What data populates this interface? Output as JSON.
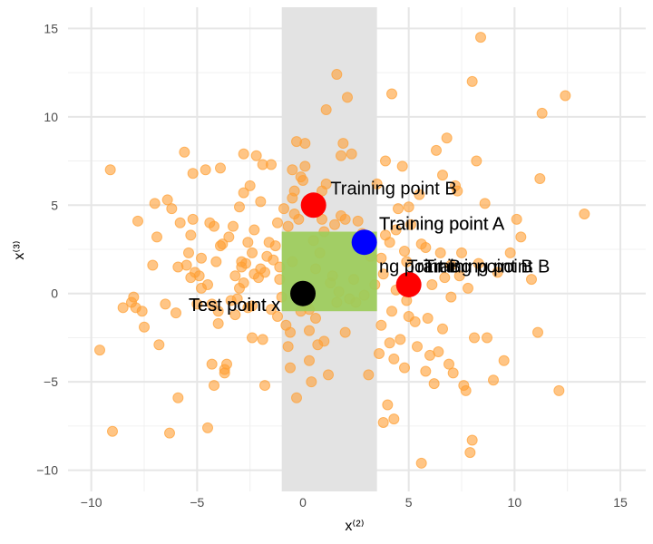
{
  "chart_data": {
    "type": "scatter",
    "title": "",
    "xlabel": "x⁽²⁾",
    "ylabel": "x⁽³⁾",
    "xlim": [
      -11.1,
      16.2
    ],
    "ylim": [
      -11.2,
      16.2
    ],
    "x_ticks": [
      -10,
      -5,
      0,
      5,
      10,
      15
    ],
    "y_ticks": [
      -10,
      -5,
      0,
      5,
      10,
      15
    ],
    "grid": true,
    "colors": {
      "points": "#ff9f33",
      "gray_band": "#e3e3e3",
      "green_box": "#9ccc5a",
      "training_b": "#ff0000",
      "training_a": "#0000ff",
      "test_point": "#000000"
    },
    "regions": [
      {
        "name": "gray-band",
        "x": [
          -1,
          3.5
        ],
        "y": [
          -11.2,
          16.2
        ]
      },
      {
        "name": "green-box",
        "x": [
          -1,
          3.5
        ],
        "y": [
          -1,
          3.5
        ]
      }
    ],
    "highlighted_points": [
      {
        "name": "training-point-b",
        "x": 0.5,
        "y": 5.0,
        "color": "#ff0000"
      },
      {
        "name": "training-point-a",
        "x": 2.9,
        "y": 2.9,
        "color": "#0000ff"
      },
      {
        "name": "training-point-b-2",
        "x": 5.0,
        "y": 0.5,
        "color": "#ff0000"
      },
      {
        "name": "test-point-x",
        "x": 0.0,
        "y": 0.0,
        "color": "#000000"
      }
    ],
    "annotations": [
      {
        "text": "Training point B",
        "x": 1.3,
        "y": 5.6
      },
      {
        "text": "Training point A",
        "x": 3.6,
        "y": 3.6
      },
      {
        "text": "Training point A",
        "x": 3.6,
        "y": 3.6
      },
      {
        "text": "ng point B",
        "x": 3.6,
        "y": 1.2
      },
      {
        "text": "Training point B",
        "x": 5.7,
        "y": 1.2
      },
      {
        "text": "Training point B",
        "x": 4.9,
        "y": 1.2
      },
      {
        "text": "Test point x",
        "x": -5.4,
        "y": -1.0
      },
      {
        "text": "Test point x",
        "x": -5.4,
        "y": -1.0
      }
    ],
    "points": [
      [
        -9.6,
        -3.2
      ],
      [
        -9.1,
        7.0
      ],
      [
        -9.0,
        -7.8
      ],
      [
        -8.5,
        -0.8
      ],
      [
        -8.1,
        -0.5
      ],
      [
        -8.0,
        -0.2
      ],
      [
        -7.9,
        -0.8
      ],
      [
        -7.8,
        4.1
      ],
      [
        -7.6,
        -1.0
      ],
      [
        -7.5,
        -1.9
      ],
      [
        -7.1,
        1.6
      ],
      [
        -7.0,
        5.1
      ],
      [
        -6.8,
        -2.9
      ],
      [
        -6.5,
        -0.6
      ],
      [
        -6.4,
        5.3
      ],
      [
        -6.3,
        -7.9
      ],
      [
        -6.2,
        4.8
      ],
      [
        -6.0,
        -1.1
      ],
      [
        -5.9,
        1.5
      ],
      [
        -5.9,
        -5.9
      ],
      [
        -5.8,
        4.0
      ],
      [
        -5.6,
        8.0
      ],
      [
        -5.5,
        1.6
      ],
      [
        -5.4,
        2.3
      ],
      [
        -5.3,
        3.3
      ],
      [
        -5.3,
        0.9
      ],
      [
        -5.2,
        4.2
      ],
      [
        -5.2,
        6.8
      ],
      [
        -5.1,
        1.2
      ],
      [
        -5.0,
        -0.6
      ],
      [
        -4.9,
        1.0
      ],
      [
        -4.8,
        2.0
      ],
      [
        -4.8,
        0.3
      ],
      [
        -4.6,
        7.0
      ],
      [
        -4.5,
        -7.6
      ],
      [
        -4.5,
        0.5
      ],
      [
        -4.4,
        4.0
      ],
      [
        -4.3,
        -4.0
      ],
      [
        -4.3,
        -0.6
      ],
      [
        -4.2,
        3.8
      ],
      [
        -4.2,
        -5.2
      ],
      [
        -4.1,
        1.8
      ],
      [
        -4.0,
        -1.7
      ],
      [
        -4.0,
        -1.0
      ],
      [
        -3.9,
        7.1
      ],
      [
        -3.9,
        2.7
      ],
      [
        -3.8,
        2.8
      ],
      [
        -3.7,
        -4.5
      ],
      [
        -3.7,
        -4.3
      ],
      [
        -3.6,
        -4.0
      ],
      [
        -3.5,
        3.2
      ],
      [
        -3.4,
        -0.4
      ],
      [
        -3.3,
        3.8
      ],
      [
        -3.2,
        -1.2
      ],
      [
        -3.2,
        1.0
      ],
      [
        -3.1,
        -0.3
      ],
      [
        -3.0,
        4.9
      ],
      [
        -3.0,
        0.3
      ],
      [
        -2.9,
        1.5
      ],
      [
        -2.9,
        1.8
      ],
      [
        -2.8,
        0.6
      ],
      [
        -2.8,
        7.9
      ],
      [
        -2.8,
        5.7
      ],
      [
        -2.7,
        1.7
      ],
      [
        -2.6,
        2.9
      ],
      [
        -2.6,
        -0.8
      ],
      [
        -2.5,
        6.1
      ],
      [
        -2.4,
        2.3
      ],
      [
        -2.4,
        -2.5
      ],
      [
        -2.4,
        -0.7
      ],
      [
        -2.3,
        1.1
      ],
      [
        -2.3,
        3.6
      ],
      [
        -2.2,
        7.8
      ],
      [
        -2.1,
        0.9
      ],
      [
        -2.0,
        1.4
      ],
      [
        -1.9,
        -2.6
      ],
      [
        -1.9,
        7.3
      ],
      [
        -1.8,
        -5.2
      ],
      [
        -1.8,
        1.2
      ],
      [
        -1.7,
        2.1
      ],
      [
        -1.6,
        2.9
      ],
      [
        -1.5,
        -0.9
      ],
      [
        -1.5,
        7.3
      ],
      [
        -1.4,
        1.9
      ],
      [
        -1.3,
        2.7
      ],
      [
        -1.2,
        -1.3
      ],
      [
        -1.1,
        1.5
      ],
      [
        -1.1,
        0.8
      ],
      [
        -1.0,
        -0.2
      ],
      [
        -0.9,
        4.8
      ],
      [
        -0.8,
        -1.8
      ],
      [
        -0.7,
        -3.0
      ],
      [
        -0.7,
        3.8
      ],
      [
        -0.6,
        -2.2
      ],
      [
        -0.6,
        -4.2
      ],
      [
        -0.5,
        5.4
      ],
      [
        -0.5,
        1.8
      ],
      [
        -0.5,
        7.0
      ],
      [
        -0.4,
        5.8
      ],
      [
        -0.4,
        4.5
      ],
      [
        -0.3,
        8.6
      ],
      [
        -0.3,
        -5.9
      ],
      [
        -0.2,
        4.2
      ],
      [
        -0.1,
        6.6
      ],
      [
        -0.1,
        -1.0
      ],
      [
        0.0,
        6.4
      ],
      [
        0.1,
        7.2
      ],
      [
        0.1,
        8.5
      ],
      [
        0.2,
        -0.6
      ],
      [
        0.3,
        -0.9
      ],
      [
        0.3,
        -3.8
      ],
      [
        0.3,
        -2.1
      ],
      [
        0.4,
        -5.0
      ],
      [
        0.5,
        3.0
      ],
      [
        0.6,
        1.4
      ],
      [
        0.6,
        -1.4
      ],
      [
        0.7,
        -2.9
      ],
      [
        0.8,
        2.3
      ],
      [
        0.9,
        4.2
      ],
      [
        0.9,
        5.8
      ],
      [
        1.0,
        3.5
      ],
      [
        1.0,
        -2.7
      ],
      [
        1.1,
        6.2
      ],
      [
        1.1,
        10.4
      ],
      [
        1.2,
        -4.6
      ],
      [
        1.3,
        0.6
      ],
      [
        1.4,
        1.0
      ],
      [
        1.5,
        3.9
      ],
      [
        1.6,
        12.4
      ],
      [
        1.7,
        0.1
      ],
      [
        1.8,
        7.8
      ],
      [
        1.8,
        4.4
      ],
      [
        1.9,
        8.5
      ],
      [
        2.0,
        -2.2
      ],
      [
        2.0,
        4.2
      ],
      [
        2.1,
        11.1
      ],
      [
        2.2,
        -0.3
      ],
      [
        2.3,
        7.9
      ],
      [
        2.4,
        0.8
      ],
      [
        2.5,
        -0.5
      ],
      [
        2.6,
        4.1
      ],
      [
        2.8,
        3.4
      ],
      [
        2.9,
        -0.1
      ],
      [
        3.0,
        3.0
      ],
      [
        3.1,
        -4.6
      ],
      [
        3.2,
        2.1
      ],
      [
        3.4,
        0.5
      ],
      [
        3.5,
        6.2
      ],
      [
        3.6,
        -3.4
      ],
      [
        3.7,
        -1.8
      ],
      [
        3.8,
        -7.3
      ],
      [
        3.9,
        7.5
      ],
      [
        4.0,
        -6.3
      ],
      [
        4.1,
        -2.8
      ],
      [
        4.2,
        11.3
      ],
      [
        4.2,
        -1.0
      ],
      [
        4.3,
        -3.7
      ],
      [
        4.3,
        -7.1
      ],
      [
        4.4,
        0.2
      ],
      [
        4.5,
        4.8
      ],
      [
        4.6,
        -2.6
      ],
      [
        4.7,
        7.2
      ],
      [
        4.8,
        -4.2
      ],
      [
        4.8,
        2.4
      ],
      [
        4.9,
        1.8
      ],
      [
        5.0,
        -1.3
      ],
      [
        5.1,
        3.9
      ],
      [
        5.2,
        0.8
      ],
      [
        5.3,
        -1.6
      ],
      [
        5.4,
        -3.0
      ],
      [
        5.5,
        5.6
      ],
      [
        5.6,
        -9.6
      ],
      [
        5.8,
        2.6
      ],
      [
        5.8,
        -4.4
      ],
      [
        5.9,
        -1.4
      ],
      [
        6.0,
        -3.5
      ],
      [
        6.1,
        0.5
      ],
      [
        6.2,
        -5.1
      ],
      [
        6.3,
        8.1
      ],
      [
        6.4,
        -3.3
      ],
      [
        6.5,
        2.3
      ],
      [
        6.6,
        -2.0
      ],
      [
        6.7,
        0.9
      ],
      [
        6.8,
        8.8
      ],
      [
        6.9,
        -4.0
      ],
      [
        7.0,
        -0.2
      ],
      [
        7.0,
        1.6
      ],
      [
        7.1,
        -4.5
      ],
      [
        7.3,
        5.8
      ],
      [
        7.4,
        1.0
      ],
      [
        7.5,
        2.3
      ],
      [
        7.6,
        -5.2
      ],
      [
        7.7,
        -5.5
      ],
      [
        7.8,
        0.3
      ],
      [
        7.9,
        -9.0
      ],
      [
        8.0,
        12.0
      ],
      [
        8.0,
        -8.3
      ],
      [
        8.1,
        -2.5
      ],
      [
        8.2,
        7.5
      ],
      [
        8.3,
        1.7
      ],
      [
        8.4,
        14.5
      ],
      [
        8.6,
        5.1
      ],
      [
        8.7,
        -2.5
      ],
      [
        9.0,
        -4.9
      ],
      [
        9.2,
        1.2
      ],
      [
        9.5,
        -3.8
      ],
      [
        9.8,
        2.3
      ],
      [
        10.1,
        4.2
      ],
      [
        10.3,
        3.2
      ],
      [
        10.8,
        0.8
      ],
      [
        11.1,
        -2.2
      ],
      [
        11.2,
        6.5
      ],
      [
        11.3,
        10.2
      ],
      [
        12.1,
        -5.5
      ],
      [
        12.4,
        11.2
      ],
      [
        13.3,
        4.5
      ],
      [
        3.9,
        3.3
      ],
      [
        4.1,
        2.9
      ],
      [
        3.7,
        2.0
      ],
      [
        3.8,
        1.1
      ],
      [
        5.6,
        2.8
      ],
      [
        4.4,
        3.6
      ],
      [
        5.0,
        4.9
      ],
      [
        -2.0,
        5.2
      ],
      [
        -1.2,
        4.0
      ],
      [
        1.6,
        -0.5
      ],
      [
        6.6,
        6.7
      ],
      [
        7.2,
        6.1
      ],
      [
        4.9,
        -0.4
      ],
      [
        -6.9,
        3.2
      ]
    ]
  }
}
